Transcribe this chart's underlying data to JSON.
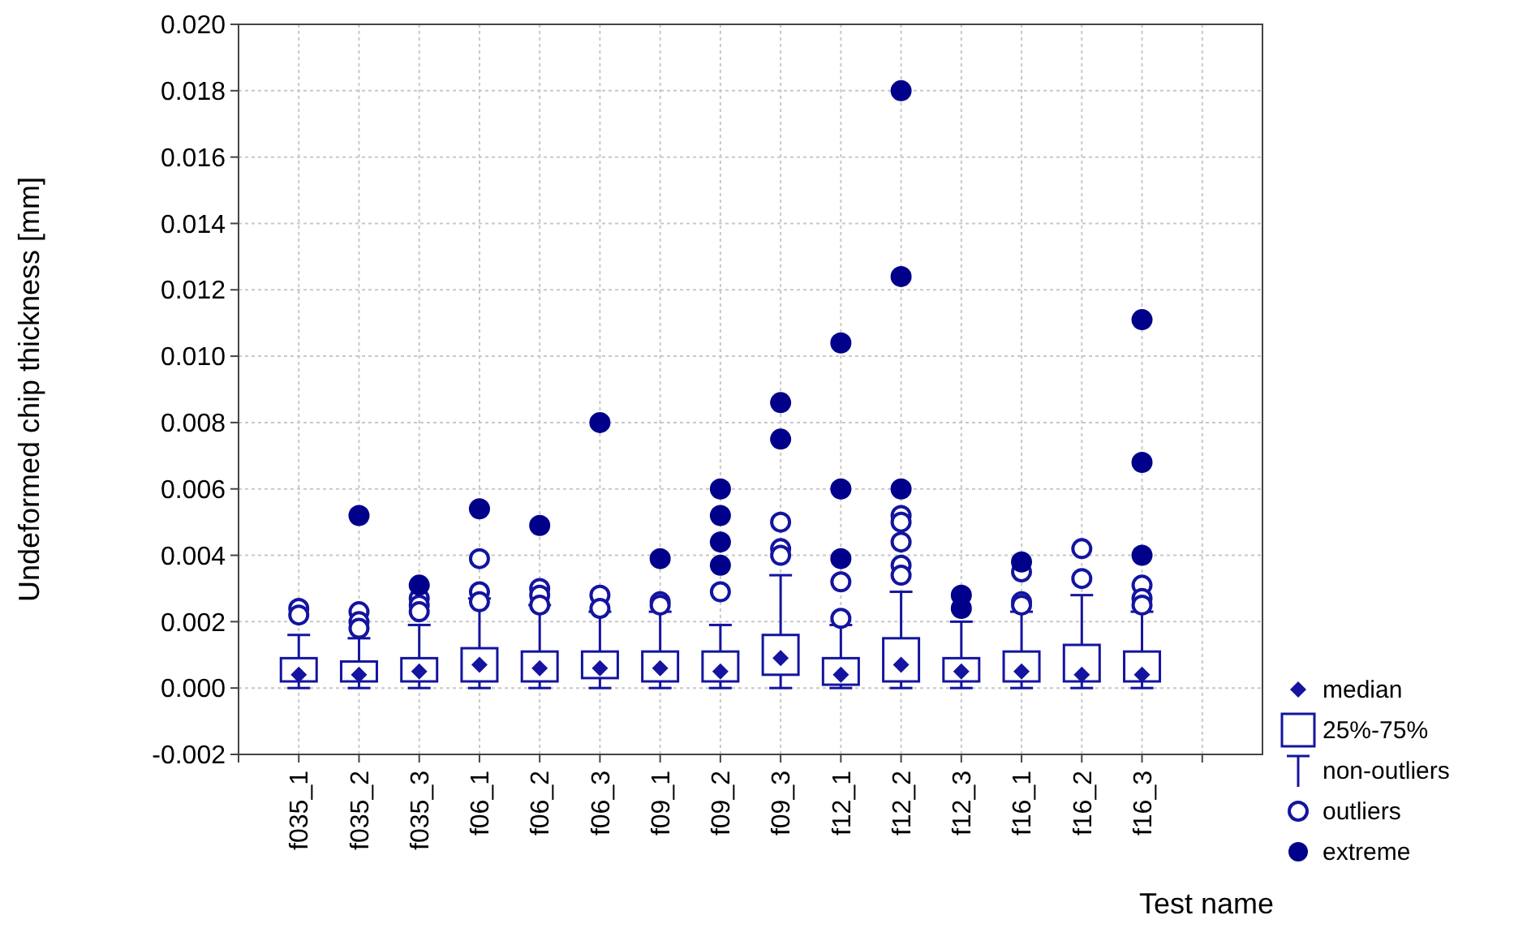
{
  "chart_data": {
    "type": "box",
    "ylabel": "Undeformed chip thickness [mm]",
    "xlabel": "Test name",
    "categories": [
      "f035_1",
      "f035_2",
      "f035_3",
      "f06_1",
      "f06_2",
      "f06_3",
      "f09_1",
      "f09_2",
      "f09_3",
      "f12_1",
      "f12_2",
      "f12_3",
      "f16_1",
      "f16_2",
      "f16_3"
    ],
    "ylim": [
      -0.002,
      0.02
    ],
    "yticks": [
      {
        "value": -0.002,
        "label": "-0.002"
      },
      {
        "value": 0,
        "label": "0.000"
      },
      {
        "value": 0.002,
        "label": "0.002"
      },
      {
        "value": 0.004,
        "label": "0.004"
      },
      {
        "value": 0.006,
        "label": "0.006"
      },
      {
        "value": 0.008,
        "label": "0.008"
      },
      {
        "value": 0.01,
        "label": "0.010"
      },
      {
        "value": 0.012,
        "label": "0.012"
      },
      {
        "value": 0.014,
        "label": "0.014"
      },
      {
        "value": 0.016,
        "label": "0.016"
      },
      {
        "value": 0.018,
        "label": "0.018"
      },
      {
        "value": 0.02,
        "label": "0.020"
      }
    ],
    "grid": true,
    "legend": "bottom right",
    "annotations": [
      "median",
      "non-outliers",
      "outliers"
    ],
    "series": [
      {
        "name": "25%-75%",
        "color": "#1414a0",
        "boxes": [
          {
            "low": 0,
            "q1": 0.0002,
            "median": 0.0004,
            "q3": 0.0009,
            "high": 0.0016,
            "outliers": [
              0.0024,
              0.0022
            ]
          },
          {
            "low": 0,
            "q1": 0.0002,
            "median": 0.0004,
            "q3": 0.0008,
            "high": 0.0015,
            "outliers": [
              0.0023,
              0.002,
              0.0018
            ]
          },
          {
            "low": 0,
            "q1": 0.0002,
            "median": 0.0005,
            "q3": 0.0009,
            "high": 0.0019,
            "outliers": [
              0.0027,
              0.0025,
              0.0023
            ]
          },
          {
            "low": 0,
            "q1": 0.0002,
            "median": 0.0007,
            "q3": 0.0012,
            "high": 0.0027,
            "outliers": [
              0.0039,
              0.0029,
              0.0026
            ]
          },
          {
            "low": 0,
            "q1": 0.0002,
            "median": 0.0006,
            "q3": 0.0011,
            "high": 0.0025,
            "outliers": [
              0.003,
              0.0028,
              0.0025
            ]
          },
          {
            "low": 0,
            "q1": 0.0003,
            "median": 0.0006,
            "q3": 0.0011,
            "high": 0.0023,
            "outliers": [
              0.0028,
              0.0024
            ]
          },
          {
            "low": 0,
            "q1": 0.0002,
            "median": 0.0006,
            "q3": 0.0011,
            "high": 0.0023,
            "outliers": [
              0.0026,
              0.0025
            ]
          },
          {
            "low": 0,
            "q1": 0.0002,
            "median": 0.0005,
            "q3": 0.0011,
            "high": 0.0019,
            "outliers": [
              0.0029
            ]
          },
          {
            "low": 0,
            "q1": 0.0004,
            "median": 0.0009,
            "q3": 0.0016,
            "high": 0.0034,
            "outliers": [
              0.005,
              0.0042,
              0.004
            ]
          },
          {
            "low": 0,
            "q1": 0.0001,
            "median": 0.0004,
            "q3": 0.0009,
            "high": 0.0019,
            "outliers": [
              0.0032,
              0.0021
            ]
          },
          {
            "low": 0,
            "q1": 0.0002,
            "median": 0.0007,
            "q3": 0.0015,
            "high": 0.0029,
            "outliers": [
              0.0052,
              0.005,
              0.0044,
              0.0037,
              0.0034
            ]
          },
          {
            "low": 0,
            "q1": 0.0002,
            "median": 0.0005,
            "q3": 0.0009,
            "high": 0.002
          },
          {
            "low": 0,
            "q1": 0.0002,
            "median": 0.0005,
            "q3": 0.0011,
            "high": 0.0023,
            "outliers": [
              0.0035,
              0.0026,
              0.0025
            ]
          },
          {
            "low": 0,
            "q1": 0.0002,
            "median": 0.0004,
            "q3": 0.0013,
            "high": 0.0028,
            "outliers": [
              0.0042,
              0.0033
            ]
          },
          {
            "low": 0,
            "q1": 0.0002,
            "median": 0.0004,
            "q3": 0.0011,
            "high": 0.0023,
            "outliers": [
              0.0031,
              0.0027,
              0.0025
            ]
          }
        ]
      },
      {
        "type": "scatter",
        "name": "extreme",
        "color": "#00008b",
        "marker": "circle",
        "x": [
          "f035_2",
          "f035_3",
          "f06_1",
          "f06_2",
          "f06_3",
          "f09_1",
          "f09_2",
          "f09_2",
          "f09_2",
          "f09_2",
          "f09_3",
          "f09_3",
          "f12_1",
          "f12_1",
          "f12_1",
          "f12_2",
          "f12_2",
          "f12_2",
          "f12_3",
          "f12_3",
          "f16_1",
          "f16_3",
          "f16_3",
          "f16_3"
        ],
        "values": [
          0.0052,
          0.0031,
          0.0054,
          0.0049,
          0.008,
          0.0039,
          0.0037,
          0.0044,
          0.0052,
          0.006,
          0.0075,
          0.0086,
          0.0039,
          0.006,
          0.0104,
          0.006,
          0.0124,
          0.018,
          0.0028,
          0.0024,
          0.0038,
          0.004,
          0.0068,
          0.0111
        ]
      }
    ]
  }
}
